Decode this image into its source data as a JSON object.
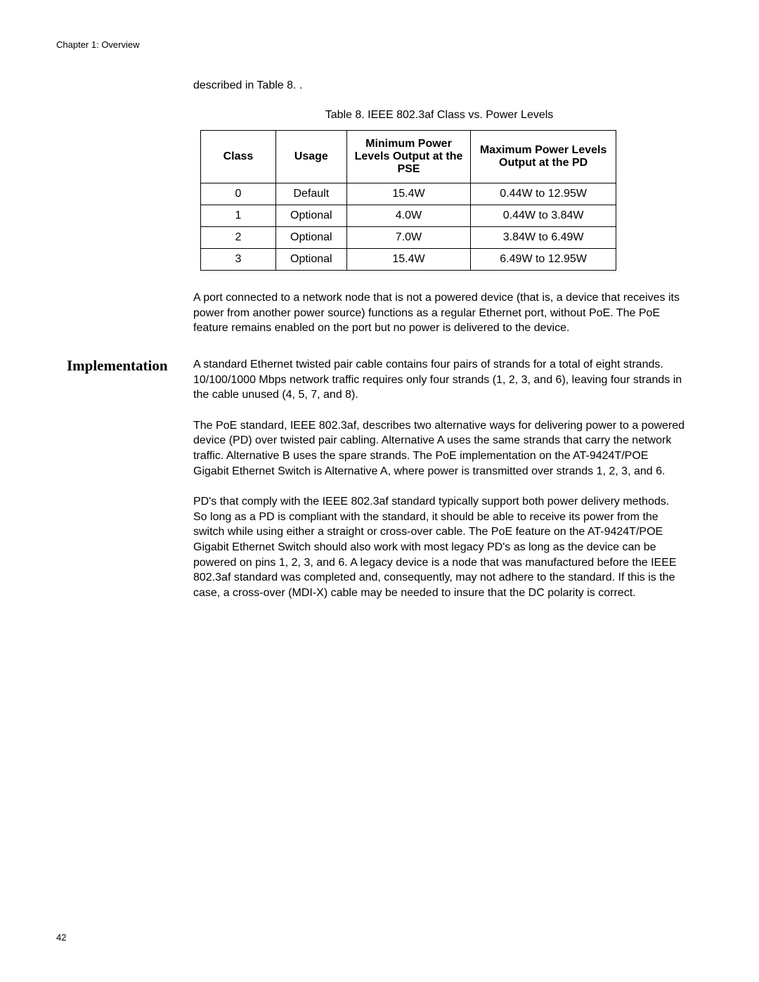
{
  "header": {
    "chapter_text": "Chapter 1: Overview"
  },
  "intro": {
    "text": "described in Table 8. ."
  },
  "table": {
    "caption": "Table 8. IEEE 802.3af Class vs. Power Levels",
    "columns": {
      "col1": "Class",
      "col2": "Usage",
      "col3": "Minimum Power Levels Output at the PSE",
      "col4": "Maximum Power Levels Output at the PD"
    },
    "rows": [
      {
        "class": "0",
        "usage": "Default",
        "min": "15.4W",
        "max": "0.44W to 12.95W"
      },
      {
        "class": "1",
        "usage": "Optional",
        "min": "4.0W",
        "max": "0.44W to 3.84W"
      },
      {
        "class": "2",
        "usage": "Optional",
        "min": "7.0W",
        "max": "3.84W to 6.49W"
      },
      {
        "class": "3",
        "usage": "Optional",
        "min": "15.4W",
        "max": "6.49W to 12.95W"
      }
    ]
  },
  "paragraphs": {
    "after_table": "A port connected to a network node that is not a powered device (that is, a device that receives its power from another power source) functions as a regular Ethernet port, without PoE. The PoE feature remains enabled on the port but no power is delivered to the device.",
    "impl1": "A standard Ethernet twisted pair cable contains four pairs of strands for a total of eight strands. 10/100/1000 Mbps network traffic requires only four strands (1, 2, 3, and 6), leaving four strands in the cable unused (4, 5, 7, and 8).",
    "impl2": "The PoE standard, IEEE 802.3af, describes two alternative ways for delivering power to a powered device (PD) over twisted pair cabling. Alternative A uses the same strands that carry the network traffic. Alternative B uses the spare strands. The PoE implementation on the AT-9424T/POE Gigabit Ethernet Switch is Alternative A, where power is transmitted over strands 1, 2, 3, and 6.",
    "impl3": "PD's that comply with the IEEE 802.3af standard typically support both power delivery methods. So long as a PD is compliant with the standard, it should be able to receive its power from the switch while using either a straight or cross-over cable. The PoE feature on the AT-9424T/POE Gigabit Ethernet Switch should also work with most legacy PD's as long as the device can be powered on pins 1, 2, 3, and 6. A legacy device is a node that was manufactured before the IEEE 802.3af standard was completed and, consequently, may not adhere to the standard. If this is the case, a cross-over (MDI-X) cable may be needed to insure that the DC polarity is correct."
  },
  "section": {
    "heading": "Implementation"
  },
  "footer": {
    "page_number": "42"
  }
}
